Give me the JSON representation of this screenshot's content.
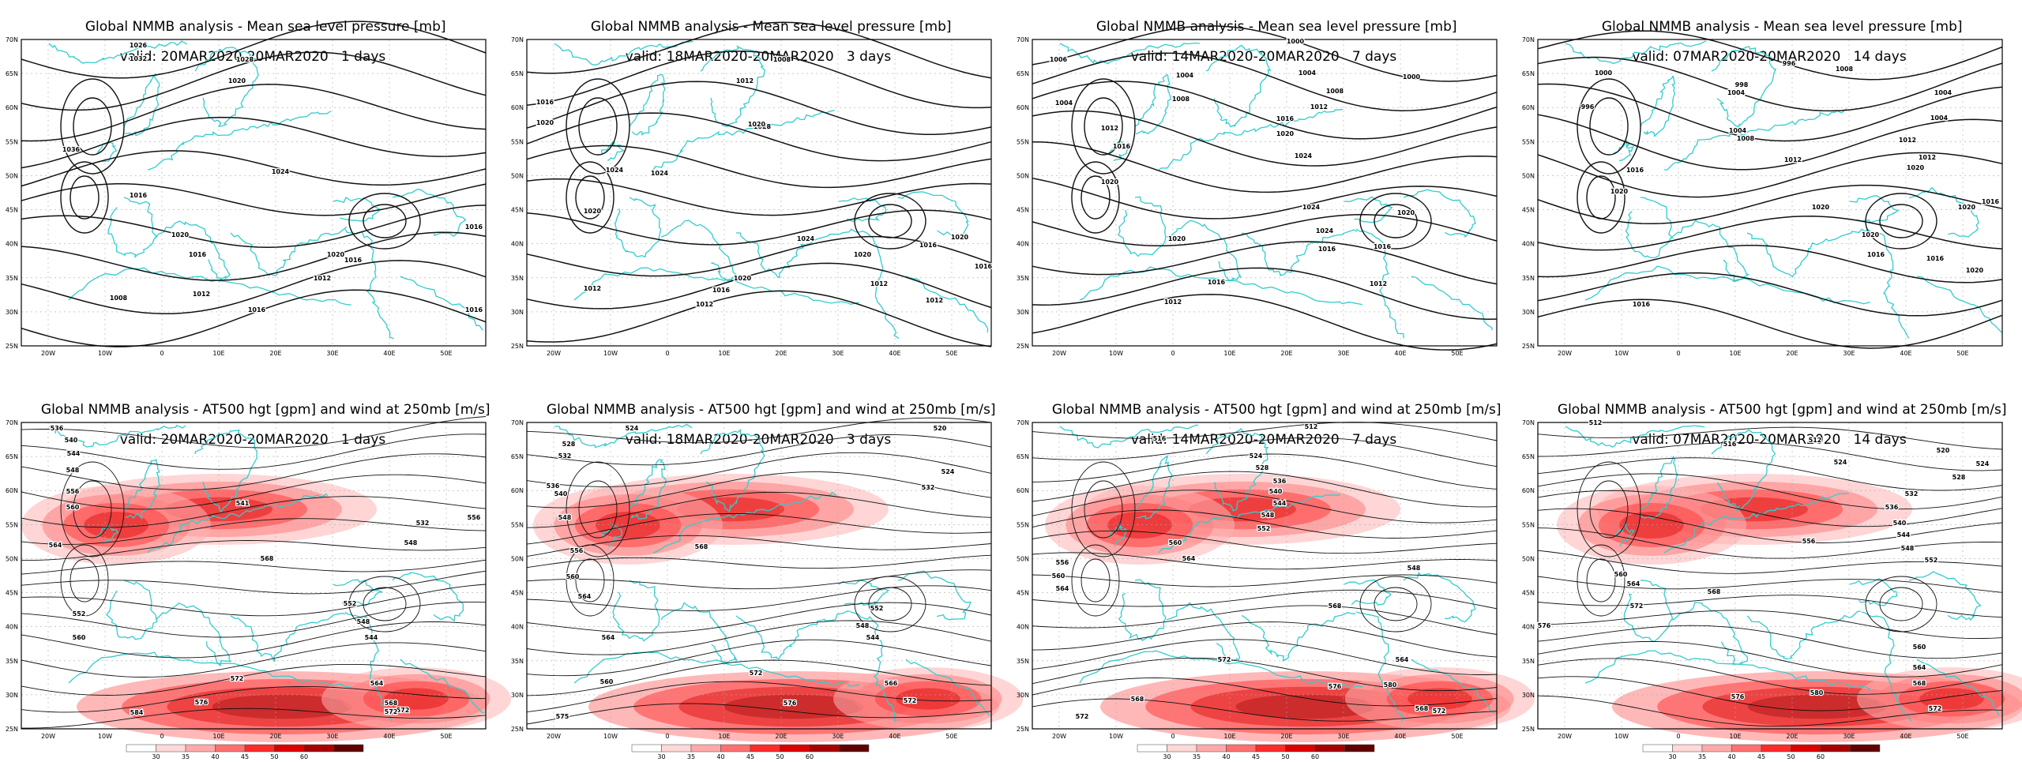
{
  "figure": {
    "panels": [
      {
        "title": "Global NMMB analysis - Mean sea level pressure [mb]",
        "valid": "valid: 20MAR2020-20MAR2020   1 days",
        "kind": "mslp",
        "labels": [
          [
            "1026",
            175,
            60
          ],
          [
            "1032",
            175,
            77
          ],
          [
            "1028",
            310,
            78
          ],
          [
            "1020",
            300,
            105
          ],
          [
            "1036",
            90,
            192
          ],
          [
            "1024",
            355,
            220
          ],
          [
            "1016",
            175,
            250
          ],
          [
            "1020",
            228,
            300
          ],
          [
            "1016",
            250,
            325
          ],
          [
            "1020",
            425,
            325
          ],
          [
            "1016",
            447,
            332
          ],
          [
            "1012",
            408,
            355
          ],
          [
            "1008",
            150,
            380
          ],
          [
            "1012",
            255,
            375
          ],
          [
            "1016",
            325,
            395
          ],
          [
            "1016",
            600,
            290
          ],
          [
            "1016",
            600,
            395
          ]
        ]
      },
      {
        "title": "Global NMMB analysis - Mean sea level pressure [mb]",
        "valid": "valid: 18MAR2020-20MAR2020   3 days",
        "kind": "mslp",
        "labels": [
          [
            "1008",
            990,
            78
          ],
          [
            "1012",
            943,
            105
          ],
          [
            "1016",
            690,
            132
          ],
          [
            "1020",
            690,
            158
          ],
          [
            "1024",
            778,
            218
          ],
          [
            "1028",
            965,
            163
          ],
          [
            "1020",
            958,
            160
          ],
          [
            "1024",
            835,
            222
          ],
          [
            "1020",
            750,
            270
          ],
          [
            "1024",
            1020,
            305
          ],
          [
            "1020",
            1092,
            325
          ],
          [
            "1016",
            1175,
            313
          ],
          [
            "1020",
            1215,
            303
          ],
          [
            "1016",
            1245,
            340
          ],
          [
            "1012",
            750,
            368
          ],
          [
            "1012",
            892,
            388
          ],
          [
            "1016",
            913,
            370
          ],
          [
            "1012",
            1113,
            362
          ],
          [
            "1012",
            1183,
            383
          ],
          [
            "1020",
            940,
            355
          ]
        ]
      },
      {
        "title": "Global NMMB analysis - Mean sea level pressure [mb]",
        "valid": "valid: 14MAR2020-20MAR2020   7 days",
        "kind": "mslp",
        "labels": [
          [
            "1000",
            1640,
            55
          ],
          [
            "1006",
            1340,
            78
          ],
          [
            "1004",
            1500,
            98
          ],
          [
            "1000",
            1787,
            100
          ],
          [
            "1004",
            1655,
            95
          ],
          [
            "1004",
            1347,
            133
          ],
          [
            "1008",
            1495,
            128
          ],
          [
            "1008",
            1690,
            118
          ],
          [
            "1012",
            1670,
            138
          ],
          [
            "1016",
            1627,
            153
          ],
          [
            "1020",
            1627,
            172
          ],
          [
            "1012",
            1405,
            165
          ],
          [
            "1016",
            1420,
            188
          ],
          [
            "1024",
            1650,
            200
          ],
          [
            "1020",
            1405,
            233
          ],
          [
            "1024",
            1660,
            265
          ],
          [
            "1020",
            1780,
            272
          ],
          [
            "1024",
            1677,
            295
          ],
          [
            "1016",
            1680,
            318
          ],
          [
            "1020",
            1490,
            305
          ],
          [
            "1016",
            1750,
            315
          ],
          [
            "1016",
            1540,
            360
          ],
          [
            "1012",
            1745,
            362
          ],
          [
            "1012",
            1485,
            385
          ]
        ]
      },
      {
        "title": "Global NMMB analysis - Mean sea level pressure [mb]",
        "valid": "valid: 07MAR2020-20MAR2020   14 days",
        "kind": "mslp",
        "labels": [
          [
            "996",
            2265,
            83
          ],
          [
            "1000",
            2030,
            95
          ],
          [
            "998",
            2205,
            110
          ],
          [
            "996",
            2010,
            138
          ],
          [
            "1004",
            2198,
            120
          ],
          [
            "1004",
            2200,
            168
          ],
          [
            "1008",
            2210,
            178
          ],
          [
            "1008",
            2335,
            90
          ],
          [
            "1004",
            2460,
            120
          ],
          [
            "1012",
            2270,
            205
          ],
          [
            "1016",
            2070,
            218
          ],
          [
            "1020",
            2050,
            245
          ],
          [
            "1020",
            2425,
            215
          ],
          [
            "1016",
            2520,
            258
          ],
          [
            "1012",
            2415,
            180
          ],
          [
            "1004",
            2455,
            152
          ],
          [
            "1012",
            2440,
            202
          ],
          [
            "1020",
            2305,
            265
          ],
          [
            "1020",
            2490,
            265
          ],
          [
            "1020",
            2368,
            300
          ],
          [
            "1016",
            2375,
            325
          ],
          [
            "1016",
            2450,
            330
          ],
          [
            "1020",
            2500,
            345
          ],
          [
            "1016",
            2078,
            388
          ]
        ]
      },
      {
        "title": "Global NMMB analysis - AT500 hgt [gpm] and wind at 250mb [m/s]",
        "valid": "valid: 20MAR2020-20MAR2020   1 days",
        "kind": "z500",
        "labels": [
          [
            "536",
            72,
            545
          ],
          [
            "540",
            90,
            560
          ],
          [
            "544",
            93,
            577
          ],
          [
            "548",
            92,
            598
          ],
          [
            "556",
            92,
            625
          ],
          [
            "560",
            92,
            645
          ],
          [
            "564",
            70,
            693
          ],
          [
            "552",
            100,
            780
          ],
          [
            "560",
            100,
            810
          ],
          [
            "568",
            338,
            710
          ],
          [
            "552",
            443,
            767
          ],
          [
            "548",
            460,
            790
          ],
          [
            "544",
            470,
            810
          ],
          [
            "572",
            300,
            862
          ],
          [
            "576",
            255,
            892
          ],
          [
            "564",
            477,
            868
          ],
          [
            "568",
            495,
            893
          ],
          [
            "572",
            510,
            902
          ],
          [
            "584",
            173,
            905
          ],
          [
            "541",
            307,
            640
          ],
          [
            "532",
            535,
            665
          ],
          [
            "548",
            520,
            690
          ],
          [
            "556",
            600,
            658
          ],
          [
            "572",
            495,
            904
          ]
        ]
      },
      {
        "title": "Global NMMB analysis - AT500 hgt [gpm] and wind at 250mb [m/s]",
        "valid": "valid: 18MAR2020-20MAR2020   3 days",
        "kind": "z500",
        "labels": [
          [
            "524",
            800,
            545
          ],
          [
            "528",
            720,
            565
          ],
          [
            "532",
            715,
            580
          ],
          [
            "536",
            700,
            618
          ],
          [
            "540",
            710,
            628
          ],
          [
            "548",
            715,
            658
          ],
          [
            "556",
            730,
            700
          ],
          [
            "560",
            725,
            733
          ],
          [
            "564",
            740,
            758
          ],
          [
            "568",
            888,
            695
          ],
          [
            "572",
            957,
            855
          ],
          [
            "576",
            1000,
            893
          ],
          [
            "552",
            1110,
            773
          ],
          [
            "548",
            1092,
            795
          ],
          [
            "544",
            1105,
            810
          ],
          [
            "564",
            770,
            810
          ],
          [
            "560",
            768,
            866
          ],
          [
            "566",
            1128,
            868
          ],
          [
            "572",
            1152,
            890
          ],
          [
            "520",
            1190,
            545
          ],
          [
            "524",
            1200,
            600
          ],
          [
            "532",
            1175,
            620
          ],
          [
            "575",
            712,
            910
          ]
        ]
      },
      {
        "title": "Global NMMB analysis - AT500 hgt [gpm] and wind at 250mb [m/s]",
        "valid": "valid: 14MAR2020-20MAR2020   7 days",
        "kind": "z500",
        "labels": [
          [
            "512",
            1660,
            543
          ],
          [
            "516",
            1468,
            558
          ],
          [
            "524",
            1590,
            580
          ],
          [
            "528",
            1598,
            595
          ],
          [
            "536",
            1620,
            612
          ],
          [
            "540",
            1615,
            625
          ],
          [
            "544",
            1620,
            640
          ],
          [
            "548",
            1605,
            655
          ],
          [
            "552",
            1600,
            672
          ],
          [
            "560",
            1488,
            690
          ],
          [
            "564",
            1505,
            710
          ],
          [
            "556",
            1345,
            715
          ],
          [
            "560",
            1340,
            732
          ],
          [
            "564",
            1345,
            748
          ],
          [
            "568",
            1690,
            770
          ],
          [
            "548",
            1790,
            722
          ],
          [
            "572",
            1550,
            838
          ],
          [
            "576",
            1690,
            872
          ],
          [
            "580",
            1760,
            870
          ],
          [
            "564",
            1775,
            838
          ],
          [
            "568",
            1800,
            900
          ],
          [
            "572",
            1822,
            903
          ],
          [
            "572",
            1370,
            910
          ],
          [
            "568",
            1440,
            888
          ]
        ]
      },
      {
        "title": "Global NMMB analysis - AT500 hgt [gpm] and wind at 250mb [m/s]",
        "valid": "valid: 07MAR2020-20MAR2020   14 days",
        "kind": "z500",
        "labels": [
          [
            "512",
            2020,
            538
          ],
          [
            "512",
            2298,
            560
          ],
          [
            "516",
            2190,
            565
          ],
          [
            "520",
            2460,
            573
          ],
          [
            "524",
            2330,
            588
          ],
          [
            "524",
            2510,
            590
          ],
          [
            "528",
            2480,
            607
          ],
          [
            "532",
            2420,
            628
          ],
          [
            "536",
            2395,
            645
          ],
          [
            "540",
            2405,
            665
          ],
          [
            "544",
            2410,
            680
          ],
          [
            "548",
            2415,
            697
          ],
          [
            "552",
            2445,
            712
          ],
          [
            "556",
            2290,
            688
          ],
          [
            "560",
            2052,
            730
          ],
          [
            "564",
            2068,
            742
          ],
          [
            "568",
            2170,
            752
          ],
          [
            "572",
            2072,
            770
          ],
          [
            "576",
            2200,
            885
          ],
          [
            "580",
            2300,
            880
          ],
          [
            "568",
            2430,
            868
          ],
          [
            "572",
            2450,
            900
          ],
          [
            "560",
            2430,
            822
          ],
          [
            "564",
            2430,
            848
          ],
          [
            "576",
            1955,
            795
          ]
        ]
      }
    ]
  },
  "colorbar": {
    "ticks": [
      "30",
      "35",
      "40",
      "45",
      "50",
      "60"
    ],
    "colors": [
      "#ffffff",
      "#ffd8d8",
      "#ffaaaa",
      "#ff7070",
      "#ff2a2a",
      "#dd0000",
      "#a80000",
      "#600000"
    ]
  },
  "axes": {
    "xticks": [
      "20W",
      "10W",
      "0",
      "10E",
      "20E",
      "30E",
      "40E",
      "50E"
    ],
    "yticks": [
      "70N",
      "65N",
      "60N",
      "55N",
      "50N",
      "45N",
      "40N",
      "35N",
      "30N",
      "25N"
    ]
  },
  "colors": {
    "coast": "#33cccc",
    "contour": "#111111",
    "grid": "#aaaaaa"
  }
}
